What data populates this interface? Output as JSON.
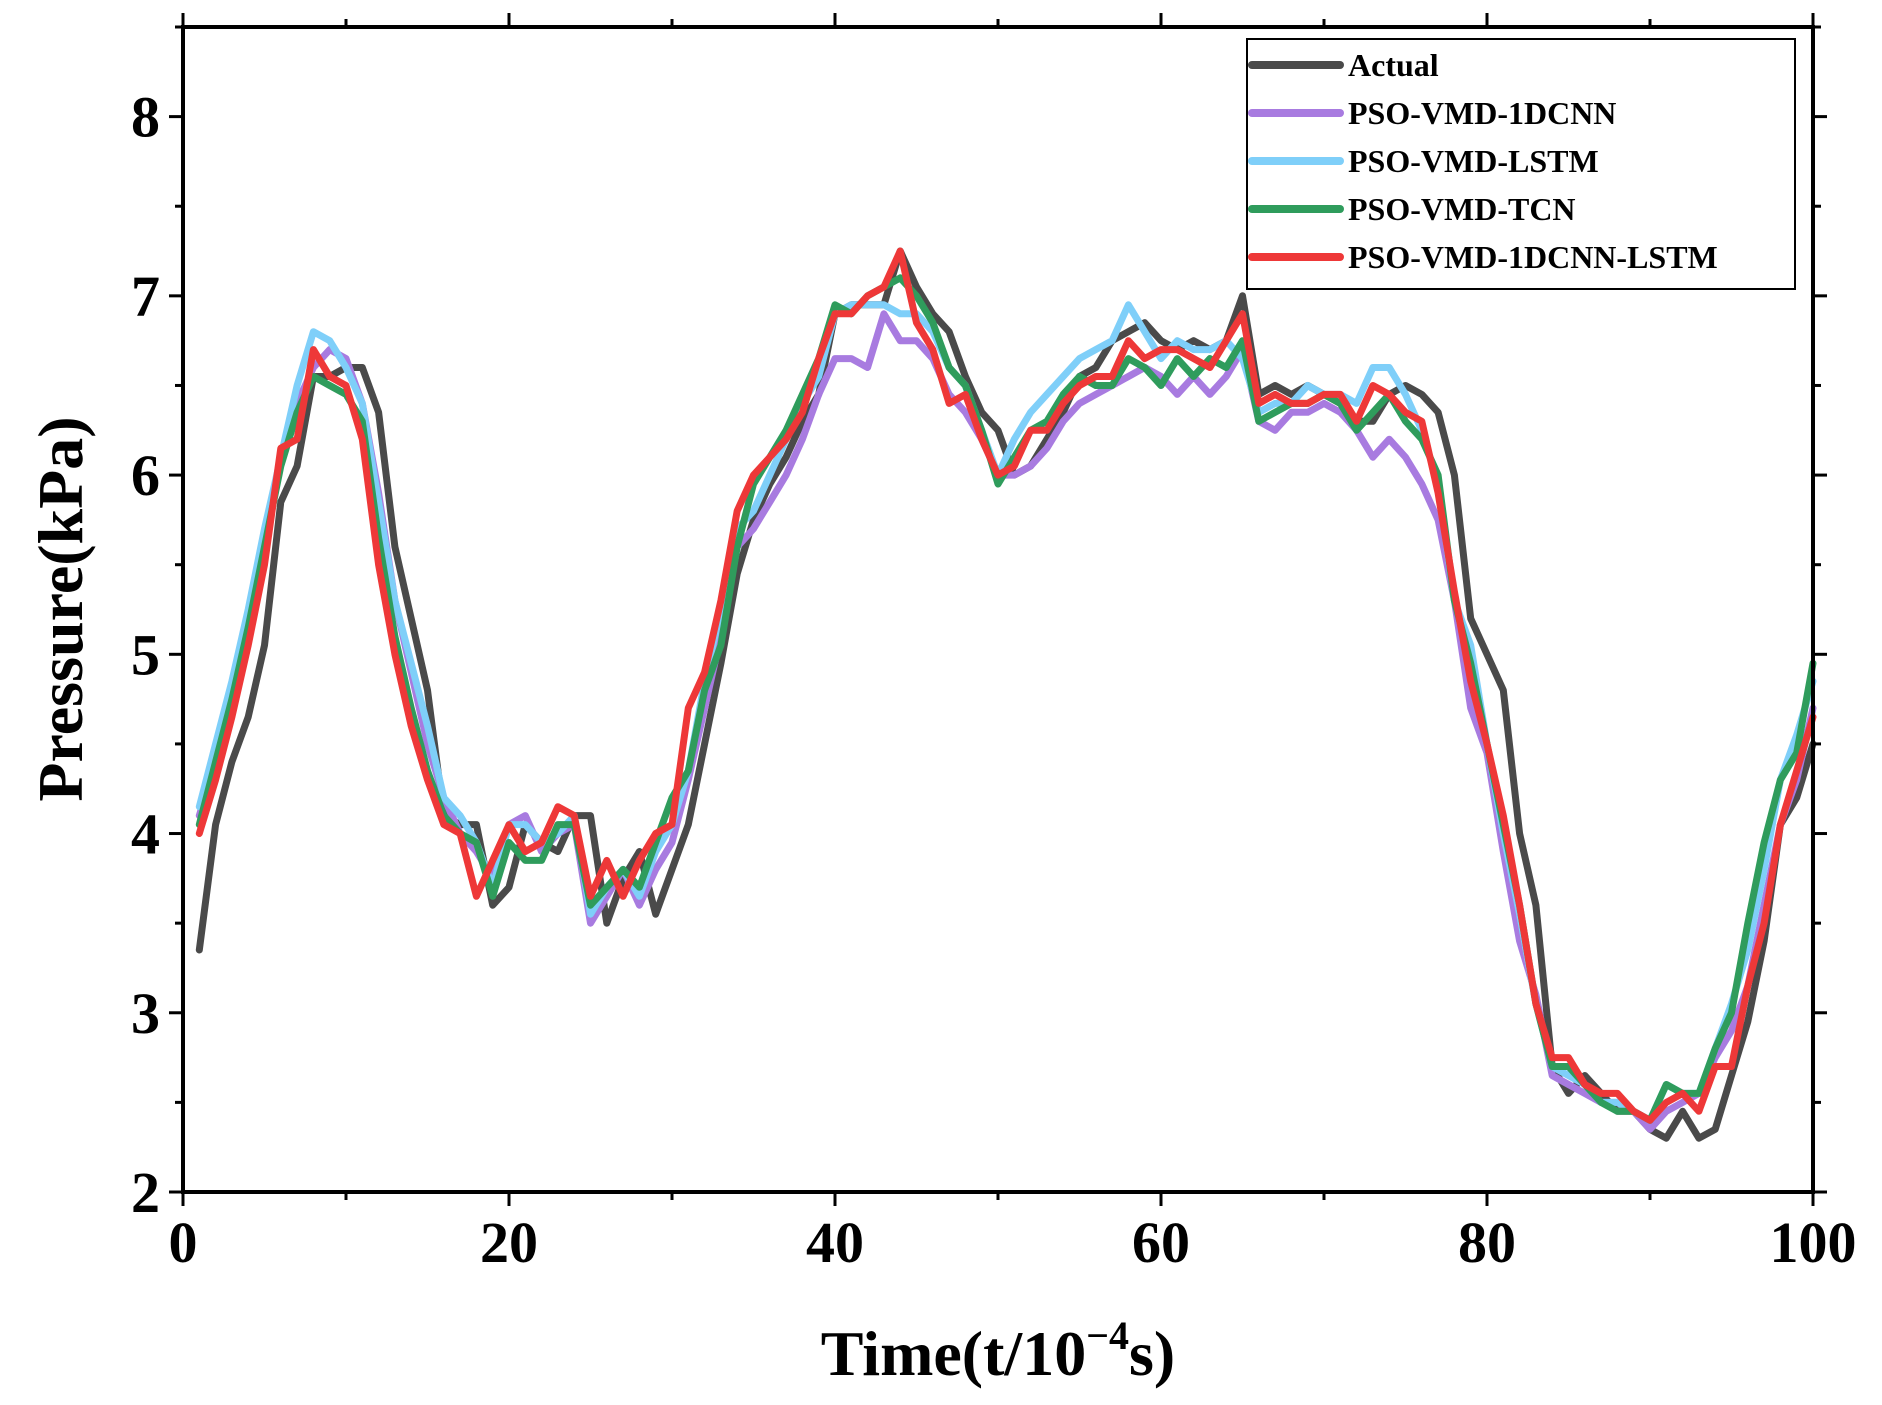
{
  "chart_data": {
    "type": "line",
    "xlabel": "Time(t/10",
    "xlabel_exp": "−4",
    "xlabel_suffix": "s)",
    "ylabel": "Pressure(kPa)",
    "xlim": [
      0,
      100
    ],
    "ylim": [
      2,
      8.5
    ],
    "xticks": [
      "0",
      "20",
      "40",
      "60",
      "80",
      "100"
    ],
    "yticks": [
      "2",
      "3",
      "4",
      "5",
      "6",
      "7",
      "8"
    ],
    "legend_position": "top-right",
    "grid": false,
    "x": [
      1,
      2,
      3,
      4,
      5,
      6,
      7,
      8,
      9,
      10,
      11,
      12,
      13,
      14,
      15,
      16,
      17,
      18,
      19,
      20,
      21,
      22,
      23,
      24,
      25,
      26,
      27,
      28,
      29,
      30,
      31,
      32,
      33,
      34,
      35,
      36,
      37,
      38,
      39,
      40,
      41,
      42,
      43,
      44,
      45,
      46,
      47,
      48,
      49,
      50,
      51,
      52,
      53,
      54,
      55,
      56,
      57,
      58,
      59,
      60,
      61,
      62,
      63,
      64,
      65,
      66,
      67,
      68,
      69,
      70,
      71,
      72,
      73,
      74,
      75,
      76,
      77,
      78,
      79,
      80,
      81,
      82,
      83,
      84,
      85,
      86,
      87,
      88,
      89,
      90,
      91,
      92,
      93,
      94,
      95,
      96,
      97,
      98,
      99,
      100
    ],
    "series": [
      {
        "name": "Actual",
        "color": "#4a4a4a",
        "values": [
          3.35,
          4.05,
          4.4,
          4.65,
          5.05,
          5.85,
          6.05,
          6.55,
          6.55,
          6.6,
          6.6,
          6.35,
          5.6,
          5.2,
          4.8,
          4.1,
          4.05,
          4.05,
          3.6,
          3.7,
          4.05,
          3.95,
          3.9,
          4.1,
          4.1,
          3.5,
          3.75,
          3.9,
          3.55,
          3.8,
          4.05,
          4.5,
          4.95,
          5.45,
          5.75,
          5.95,
          6.1,
          6.3,
          6.45,
          6.9,
          6.95,
          6.95,
          6.95,
          7.25,
          7.05,
          6.9,
          6.8,
          6.55,
          6.35,
          6.25,
          6.0,
          6.05,
          6.2,
          6.35,
          6.55,
          6.6,
          6.75,
          6.8,
          6.85,
          6.75,
          6.7,
          6.75,
          6.7,
          6.75,
          7.0,
          6.45,
          6.5,
          6.45,
          6.5,
          6.45,
          6.4,
          6.3,
          6.3,
          6.45,
          6.5,
          6.45,
          6.35,
          6.0,
          5.2,
          5.0,
          4.8,
          4.0,
          3.6,
          2.7,
          2.55,
          2.65,
          2.55,
          2.45,
          2.45,
          2.35,
          2.3,
          2.45,
          2.3,
          2.35,
          2.65,
          2.95,
          3.4,
          4.05,
          4.2,
          4.5
        ]
      },
      {
        "name": "PSO-VMD-1DCNN",
        "color": "#a87be0",
        "values": [
          4.1,
          4.4,
          4.7,
          5.1,
          5.6,
          6.1,
          6.4,
          6.6,
          6.7,
          6.65,
          6.4,
          5.9,
          5.3,
          4.9,
          4.5,
          4.2,
          4.0,
          3.9,
          3.75,
          4.05,
          4.1,
          3.9,
          4.0,
          4.05,
          3.5,
          3.65,
          3.8,
          3.6,
          3.8,
          3.95,
          4.3,
          4.7,
          5.1,
          5.6,
          5.7,
          5.85,
          6.0,
          6.2,
          6.45,
          6.65,
          6.65,
          6.6,
          6.9,
          6.75,
          6.75,
          6.65,
          6.45,
          6.35,
          6.2,
          6.0,
          6.0,
          6.05,
          6.15,
          6.3,
          6.4,
          6.45,
          6.5,
          6.55,
          6.6,
          6.55,
          6.45,
          6.55,
          6.45,
          6.55,
          6.7,
          6.3,
          6.25,
          6.35,
          6.35,
          6.4,
          6.35,
          6.25,
          6.1,
          6.2,
          6.1,
          5.95,
          5.75,
          5.3,
          4.7,
          4.45,
          3.9,
          3.4,
          3.1,
          2.65,
          2.6,
          2.55,
          2.5,
          2.5,
          2.45,
          2.35,
          2.45,
          2.5,
          2.55,
          2.75,
          2.9,
          3.15,
          3.6,
          4.05,
          4.3,
          4.7
        ]
      },
      {
        "name": "PSO-VMD-LSTM",
        "color": "#7fcff9",
        "values": [
          4.15,
          4.5,
          4.85,
          5.25,
          5.7,
          6.1,
          6.5,
          6.8,
          6.75,
          6.6,
          6.4,
          5.85,
          5.3,
          4.95,
          4.6,
          4.2,
          4.1,
          3.95,
          3.7,
          4.05,
          4.05,
          3.95,
          4.0,
          4.1,
          3.55,
          3.7,
          3.8,
          3.65,
          3.9,
          4.05,
          4.35,
          4.85,
          5.25,
          5.7,
          5.8,
          6.0,
          6.2,
          6.4,
          6.55,
          6.9,
          6.95,
          6.95,
          6.95,
          6.9,
          6.9,
          6.8,
          6.6,
          6.5,
          6.25,
          6.0,
          6.2,
          6.35,
          6.45,
          6.55,
          6.65,
          6.7,
          6.75,
          6.95,
          6.8,
          6.65,
          6.75,
          6.7,
          6.7,
          6.75,
          6.65,
          6.35,
          6.4,
          6.4,
          6.5,
          6.45,
          6.45,
          6.4,
          6.6,
          6.6,
          6.45,
          6.25,
          5.95,
          5.3,
          5.05,
          4.5,
          4.0,
          3.55,
          3.05,
          2.7,
          2.65,
          2.6,
          2.5,
          2.5,
          2.45,
          2.4,
          2.6,
          2.55,
          2.55,
          2.8,
          3.05,
          3.35,
          3.8,
          4.3,
          4.55,
          4.85
        ]
      },
      {
        "name": "PSO-VMD-TCN",
        "color": "#2f9c5c",
        "values": [
          4.05,
          4.4,
          4.75,
          5.15,
          5.6,
          6.05,
          6.35,
          6.55,
          6.5,
          6.45,
          6.3,
          5.65,
          5.1,
          4.7,
          4.35,
          4.1,
          4.0,
          3.95,
          3.65,
          3.95,
          3.85,
          3.85,
          4.05,
          4.05,
          3.6,
          3.7,
          3.8,
          3.7,
          3.95,
          4.2,
          4.35,
          4.8,
          5.05,
          5.6,
          5.95,
          6.1,
          6.25,
          6.45,
          6.65,
          6.95,
          6.9,
          7.0,
          7.05,
          7.1,
          7.0,
          6.85,
          6.6,
          6.5,
          6.25,
          5.95,
          6.1,
          6.25,
          6.3,
          6.45,
          6.55,
          6.5,
          6.5,
          6.65,
          6.6,
          6.5,
          6.65,
          6.55,
          6.65,
          6.6,
          6.75,
          6.3,
          6.35,
          6.4,
          6.4,
          6.45,
          6.4,
          6.25,
          6.35,
          6.45,
          6.3,
          6.2,
          6.0,
          5.3,
          4.95,
          4.5,
          4.05,
          3.6,
          3.05,
          2.7,
          2.7,
          2.6,
          2.5,
          2.45,
          2.45,
          2.4,
          2.6,
          2.55,
          2.55,
          2.8,
          3.0,
          3.5,
          3.95,
          4.3,
          4.45,
          4.95
        ]
      },
      {
        "name": "PSO-VMD-1DCNN-LSTM",
        "color": "#ee3838",
        "values": [
          4.0,
          4.3,
          4.65,
          5.05,
          5.5,
          6.15,
          6.2,
          6.7,
          6.55,
          6.5,
          6.2,
          5.5,
          5.0,
          4.6,
          4.3,
          4.05,
          4.0,
          3.65,
          3.85,
          4.05,
          3.9,
          3.95,
          4.15,
          4.1,
          3.65,
          3.85,
          3.65,
          3.85,
          4.0,
          4.05,
          4.7,
          4.9,
          5.3,
          5.8,
          6.0,
          6.1,
          6.2,
          6.35,
          6.65,
          6.9,
          6.9,
          7.0,
          7.05,
          7.25,
          6.85,
          6.7,
          6.4,
          6.45,
          6.2,
          6.0,
          6.05,
          6.25,
          6.25,
          6.4,
          6.5,
          6.55,
          6.55,
          6.75,
          6.65,
          6.7,
          6.7,
          6.65,
          6.6,
          6.75,
          6.9,
          6.4,
          6.45,
          6.4,
          6.4,
          6.45,
          6.45,
          6.3,
          6.5,
          6.45,
          6.35,
          6.3,
          5.9,
          5.35,
          4.85,
          4.5,
          4.1,
          3.6,
          3.05,
          2.75,
          2.75,
          2.6,
          2.55,
          2.55,
          2.45,
          2.4,
          2.5,
          2.55,
          2.45,
          2.7,
          2.7,
          3.15,
          3.5,
          4.05,
          4.35,
          4.65
        ]
      }
    ]
  }
}
